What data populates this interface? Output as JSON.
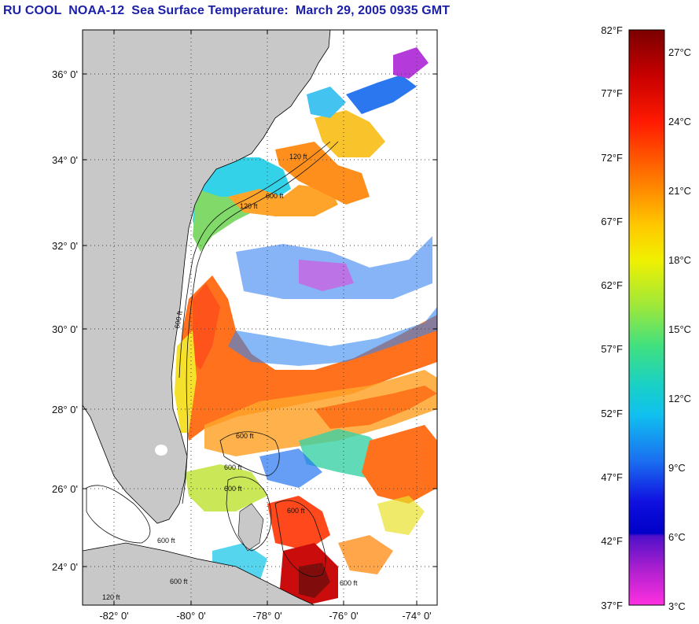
{
  "title": "RU COOL  NOAA-12  Sea Surface Temperature:  March 29, 2005 0935 GMT",
  "map": {
    "lat_labels": [
      "36° 0'",
      "34° 0'",
      "32° 0'",
      "30° 0'",
      "28° 0'",
      "26° 0'",
      "24° 0'"
    ],
    "lon_labels": [
      "-82° 0'",
      "-80° 0'",
      "-78° 0'",
      "-76° 0'",
      "-74° 0'"
    ],
    "isobath_labels": [
      "120 ft",
      "600 ft",
      "120 ft",
      "600 ft",
      "600 ft",
      "600 ft",
      "600 ft",
      "600 ft",
      "600 ft",
      "120 ft",
      "600 ft",
      "600 ft"
    ],
    "colors": {
      "land": "#c8c8c8",
      "cloud": "#ffffff",
      "grid": "#444444",
      "frame": "#000000"
    }
  },
  "colorbar": {
    "fahrenheit_labels": [
      "82°F",
      "77°F",
      "72°F",
      "67°F",
      "62°F",
      "57°F",
      "52°F",
      "47°F",
      "42°F",
      "37°F"
    ],
    "celsius_labels": [
      "27°C",
      "24°C",
      "21°C",
      "18°C",
      "15°C",
      "12°C",
      "9°C",
      "6°C",
      "3°C"
    ],
    "gradient_top_to_bottom": [
      "#7a0000",
      "#d80000",
      "#ff2a00",
      "#ff7a00",
      "#ffcc00",
      "#e4f000",
      "#7ce840",
      "#1fd0a0",
      "#10c8e8",
      "#1a70f0",
      "#1010e0",
      "#0000c8",
      "#6a10c8",
      "#c020d0",
      "#ff30e0"
    ]
  }
}
